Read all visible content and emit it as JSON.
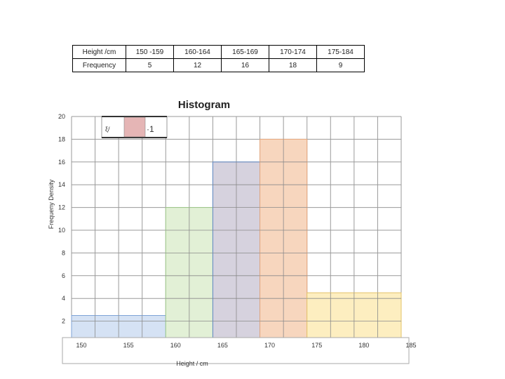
{
  "table": {
    "row1_label": "Height /cm",
    "row2_label": "Frequency",
    "classes": [
      "150 -159",
      "160-164",
      "165-169",
      "170-174",
      "175-184"
    ],
    "frequencies": [
      "5",
      "12",
      "16",
      "18",
      "9"
    ]
  },
  "legend_box": {
    "left_glyph": "ξ/",
    "right_glyph": "·1"
  },
  "chart_data": {
    "type": "bar",
    "title": "Histogram",
    "xlabel": "Height / cm",
    "ylabel": "Frequeny Density",
    "xlim": [
      150,
      185
    ],
    "ylim": [
      0,
      20
    ],
    "x_ticks": [
      150,
      155,
      160,
      165,
      170,
      175,
      180,
      185
    ],
    "y_ticks": [
      2,
      4,
      6,
      8,
      10,
      12,
      14,
      16,
      18,
      20
    ],
    "grid": true,
    "bars": [
      {
        "x0": 150,
        "x1": 160,
        "value": 2.5,
        "fill": "#d5e2f4",
        "stroke": "#7ea3d6"
      },
      {
        "x0": 160,
        "x1": 165,
        "value": 12,
        "fill": "#e2f0d6",
        "stroke": "#9ec98a"
      },
      {
        "x0": 165,
        "x1": 170,
        "value": 16,
        "fill": "#d6d2de",
        "stroke": "#5e86c2"
      },
      {
        "x0": 170,
        "x1": 175,
        "value": 18,
        "fill": "#f7d6be",
        "stroke": "#e6a77d"
      },
      {
        "x0": 175,
        "x1": 185,
        "value": 4.5,
        "fill": "#fdeec0",
        "stroke": "#e3c46a"
      }
    ]
  }
}
